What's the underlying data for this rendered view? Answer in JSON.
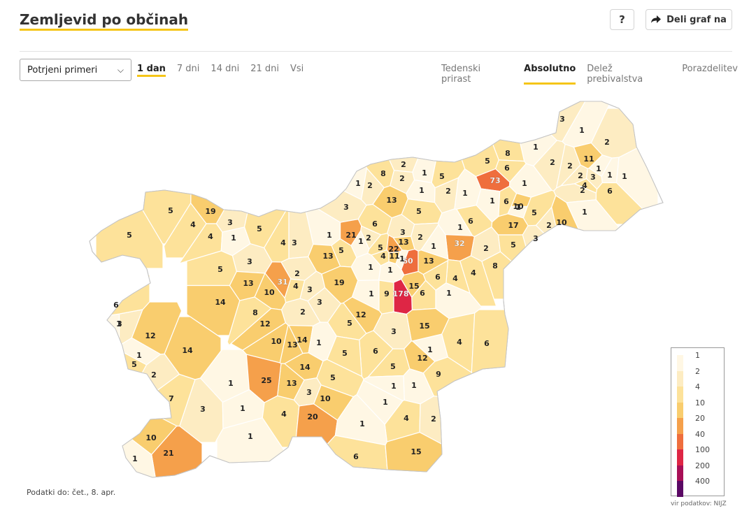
{
  "header": {
    "title": "Zemljevid po občinah",
    "help_label": "?",
    "share_label": "Deli graf na",
    "share_icon": "share-arrow-icon"
  },
  "controls": {
    "select_value": "Potrjeni primeri",
    "period_tabs": [
      {
        "label": "1 dan",
        "active": true
      },
      {
        "label": "7 dni",
        "active": false
      },
      {
        "label": "14 dni",
        "active": false
      },
      {
        "label": "21 dni",
        "active": false
      },
      {
        "label": "Vsi",
        "active": false
      }
    ],
    "mode_tabs": [
      {
        "label": "Tedenski prirast",
        "active": false
      },
      {
        "label": "Absolutno",
        "active": true
      },
      {
        "label": "Delež prebivalstva",
        "active": false
      },
      {
        "label": "Porazdelitev",
        "active": false
      }
    ]
  },
  "map": {
    "municipality_values": [
      3,
      1,
      2,
      11,
      1,
      8,
      5,
      6,
      2,
      2,
      8,
      2,
      1,
      5,
      73,
      1,
      1,
      2,
      2,
      1,
      2,
      1,
      1,
      1,
      1,
      2,
      3,
      4,
      1,
      6,
      10,
      6,
      2,
      13,
      5,
      3,
      1,
      19,
      6,
      3,
      5,
      17,
      6,
      1,
      2,
      10,
      1,
      5,
      4,
      4,
      5,
      1,
      5,
      3,
      1,
      21,
      2,
      1,
      13,
      2,
      5,
      22,
      3,
      4,
      11,
      3,
      5,
      13,
      4,
      32,
      60,
      13,
      1,
      2,
      5,
      1,
      3,
      1,
      4,
      1,
      8,
      13,
      4,
      6,
      2,
      31,
      4,
      19,
      15,
      1,
      3,
      10,
      5,
      14,
      6,
      1,
      9,
      178,
      8,
      2,
      3,
      3,
      12,
      12,
      5,
      15,
      3,
      6,
      10,
      13,
      14,
      1,
      12,
      14,
      5,
      4,
      6,
      1,
      12,
      1,
      5,
      2,
      5,
      1,
      14,
      9,
      13,
      1,
      25,
      5,
      3,
      1,
      7,
      1,
      3,
      10,
      1,
      4,
      20,
      4,
      2,
      1,
      1,
      10,
      21,
      1,
      6,
      15,
      1,
      6
    ],
    "classes": [
      {
        "label": "1",
        "color": "#fff7e4"
      },
      {
        "label": "2",
        "color": "#fdecc2"
      },
      {
        "label": "4",
        "color": "#fde29a"
      },
      {
        "label": "10",
        "color": "#f9cd6e"
      },
      {
        "label": "20",
        "color": "#f5a04b"
      },
      {
        "label": "40",
        "color": "#ef6e3d"
      },
      {
        "label": "100",
        "color": "#de2645"
      },
      {
        "label": "200",
        "color": "#a80f56"
      },
      {
        "label": "400",
        "color": "#5a0864"
      }
    ],
    "zero_color": "#ffffff"
  },
  "footer": {
    "data_date": "Podatki do: čet., 8. apr.",
    "source": "vir podatkov: NIJZ"
  }
}
